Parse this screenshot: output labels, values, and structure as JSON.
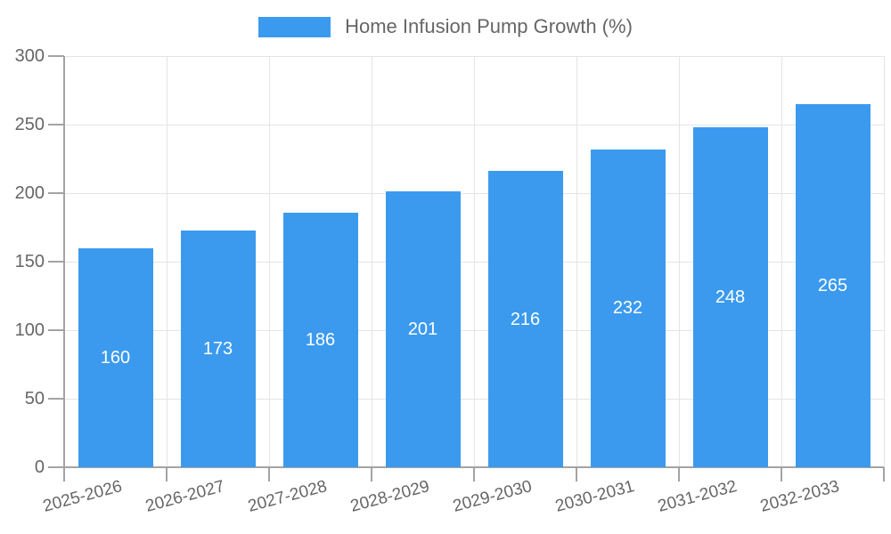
{
  "legend": {
    "label": "Home Infusion Pump Growth (%)"
  },
  "chart_data": {
    "type": "bar",
    "title": "Home Infusion Pump Growth (%)",
    "categories": [
      "2025-2026",
      "2026-2027",
      "2027-2028",
      "2028-2029",
      "2029-2030",
      "2030-2031",
      "2031-2032",
      "2032-2033"
    ],
    "values": [
      160,
      173,
      186,
      201,
      216,
      232,
      248,
      265
    ],
    "xlabel": "",
    "ylabel": "",
    "ylim": [
      0,
      300
    ],
    "yticks": [
      0,
      50,
      100,
      150,
      200,
      250,
      300
    ],
    "grid": true,
    "legend_position": "top-center",
    "bar_label_position": "center-inside"
  },
  "colors": {
    "bar": "#3b9aee",
    "bar_label": "#ffffff",
    "axis": "#a3a3a3",
    "gridline": "#e4e4e4",
    "tick_label": "#666666",
    "legend_text": "#666666",
    "background": "#ffffff"
  }
}
